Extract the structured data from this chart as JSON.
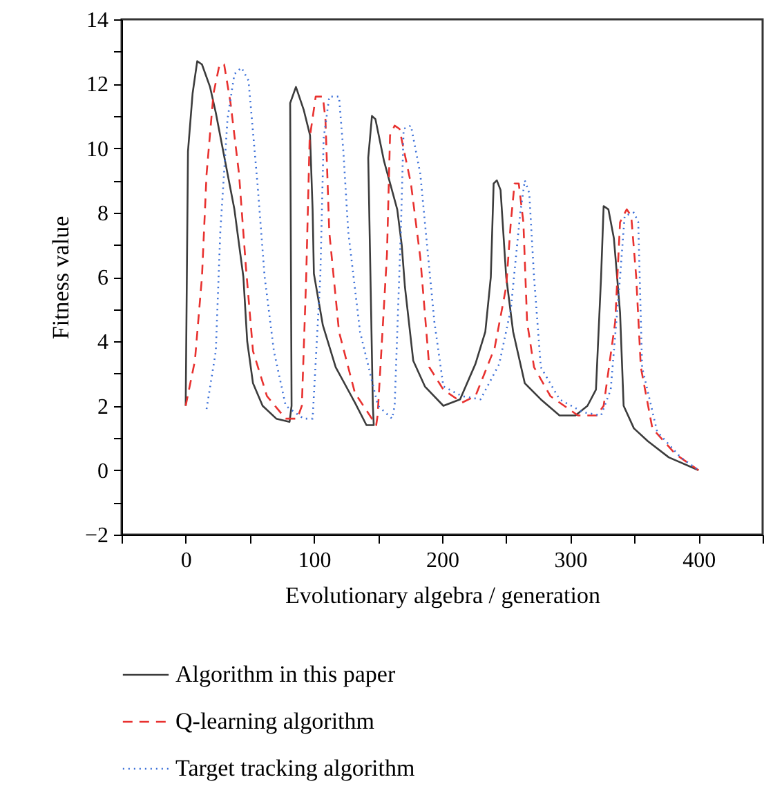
{
  "chart_data": {
    "type": "line",
    "xlabel": "Evolutionary algebra / generation",
    "ylabel": "Fitness value",
    "xlim": [
      -50,
      450
    ],
    "ylim": [
      -2,
      14
    ],
    "xticks": [
      {
        "value": -50,
        "label": null
      },
      0,
      {
        "value": 50,
        "label": null
      },
      100,
      {
        "value": 150,
        "label": null
      },
      200,
      {
        "value": 250,
        "label": null
      },
      300,
      {
        "value": 350,
        "label": null
      },
      400,
      {
        "value": 450,
        "label": null
      }
    ],
    "yticks": [
      -2,
      {
        "value": -1,
        "label": null
      },
      0,
      {
        "value": 1,
        "label": null
      },
      2,
      {
        "value": 3,
        "label": null
      },
      4,
      {
        "value": 5,
        "label": null
      },
      6,
      {
        "value": 7,
        "label": null
      },
      8,
      {
        "value": 9,
        "label": null
      },
      10,
      {
        "value": 11,
        "label": null
      },
      12,
      {
        "value": 13,
        "label": null
      },
      14
    ],
    "grid": false,
    "legend": "bottom",
    "marker": "none",
    "series": [
      {
        "name": "Algorithm in this paper",
        "color": "#3c3c3c",
        "line_style": "solid",
        "x": [
          0,
          1.8,
          5.4,
          9,
          12.7,
          19,
          23.5,
          38,
          45,
          48,
          52.5,
          60,
          70.7,
          81,
          82.6,
          81.5,
          86,
          92,
          97,
          99,
          100,
          107,
          117,
          132,
          141,
          146.7,
          146,
          142.4,
          145.3,
          148,
          154.7,
          165,
          168.5,
          171,
          177.5,
          186.6,
          201,
          214,
          226,
          233.7,
          238,
          240.2,
          242.7,
          245.6,
          250,
          255.4,
          264.5,
          277,
          291.6,
          304,
          313.4,
          320,
          324,
          326,
          329.7,
          334,
          338.8,
          341.6,
          349.6,
          360.5,
          376.8,
          400
        ],
        "values": [
          2.0,
          9.9,
          11.7,
          12.7,
          12.6,
          11.9,
          11.1,
          8.1,
          6.0,
          4.0,
          2.7,
          2.0,
          1.6,
          1.5,
          2.0,
          11.4,
          11.9,
          11.2,
          10.4,
          8.1,
          6.1,
          4.5,
          3.2,
          2.1,
          1.4,
          1.4,
          2.0,
          9.7,
          11.0,
          10.9,
          9.6,
          8.1,
          7.0,
          5.7,
          3.4,
          2.6,
          2.0,
          2.2,
          3.3,
          4.3,
          6.0,
          8.9,
          9.0,
          8.7,
          6.0,
          4.3,
          2.7,
          2.2,
          1.7,
          1.7,
          2.0,
          2.5,
          6.0,
          8.2,
          8.1,
          7.2,
          4.9,
          2.0,
          1.3,
          0.9,
          0.4,
          0.0
        ]
      },
      {
        "name": "Q-learning algorithm",
        "color": "#e8312f",
        "line_style": "dashed",
        "x": [
          0,
          7.2,
          12.7,
          16.3,
          21.7,
          26.4,
          30,
          35,
          41.6,
          47,
          52.5,
          63.4,
          78,
          87,
          90.6,
          94,
          96.7,
          101.4,
          107,
          109,
          112,
          119.6,
          132,
          148.6,
          149.7,
          157,
          159.4,
          163,
          166.7,
          175.7,
          183,
          190,
          201,
          215.6,
          226,
          241,
          250,
          253.6,
          256.5,
          259.8,
          263.4,
          266.3,
          271.7,
          284.5,
          306,
          320.6,
          326,
          335,
          338.8,
          344,
          347.5,
          351.4,
          355,
          364,
          382,
          400
        ],
        "values": [
          2.0,
          3.4,
          6.0,
          9.2,
          11.7,
          12.6,
          12.6,
          11.4,
          9.2,
          6.3,
          3.7,
          2.3,
          1.6,
          1.6,
          2.0,
          6.0,
          10.3,
          11.6,
          11.6,
          10.9,
          7.4,
          4.3,
          2.4,
          1.4,
          1.7,
          6.7,
          10.4,
          10.7,
          10.6,
          8.9,
          6.6,
          3.2,
          2.5,
          2.1,
          2.3,
          3.8,
          5.7,
          7.7,
          8.9,
          8.9,
          7.7,
          4.6,
          3.2,
          2.3,
          1.7,
          1.7,
          2.0,
          4.6,
          7.7,
          8.1,
          7.9,
          6.0,
          3.2,
          1.3,
          0.5,
          0.0
        ]
      },
      {
        "name": "Target tracking algorithm",
        "color": "#3a6fd8",
        "line_style": "dotted",
        "x": [
          16.3,
          23.5,
          27,
          32.6,
          38,
          43.5,
          49,
          56,
          61.6,
          68.8,
          78,
          92,
          99,
          105,
          107.6,
          112,
          119.6,
          123,
          126.8,
          136,
          150,
          161,
          163,
          167.8,
          170,
          175.7,
          183,
          188,
          194,
          201,
          215.6,
          230,
          244.6,
          253.6,
          261,
          264.5,
          268,
          271.7,
          277,
          291.6,
          310,
          324,
          331.5,
          338.8,
          342.4,
          349.6,
          353,
          356,
          367.7,
          386,
          400
        ],
        "values": [
          1.9,
          3.7,
          7.4,
          10.9,
          12.3,
          12.5,
          12.1,
          8.9,
          6.0,
          3.7,
          2.0,
          1.6,
          1.6,
          6.0,
          10.3,
          11.6,
          11.6,
          9.9,
          7.4,
          4.3,
          2.0,
          1.6,
          2.0,
          7.4,
          10.6,
          10.7,
          9.2,
          7.1,
          4.6,
          2.6,
          2.3,
          2.2,
          3.3,
          5.0,
          8.0,
          9.0,
          8.6,
          6.0,
          3.2,
          2.2,
          1.8,
          1.7,
          2.5,
          6.0,
          7.9,
          8.0,
          7.7,
          3.2,
          1.2,
          0.4,
          0.0
        ]
      }
    ]
  }
}
